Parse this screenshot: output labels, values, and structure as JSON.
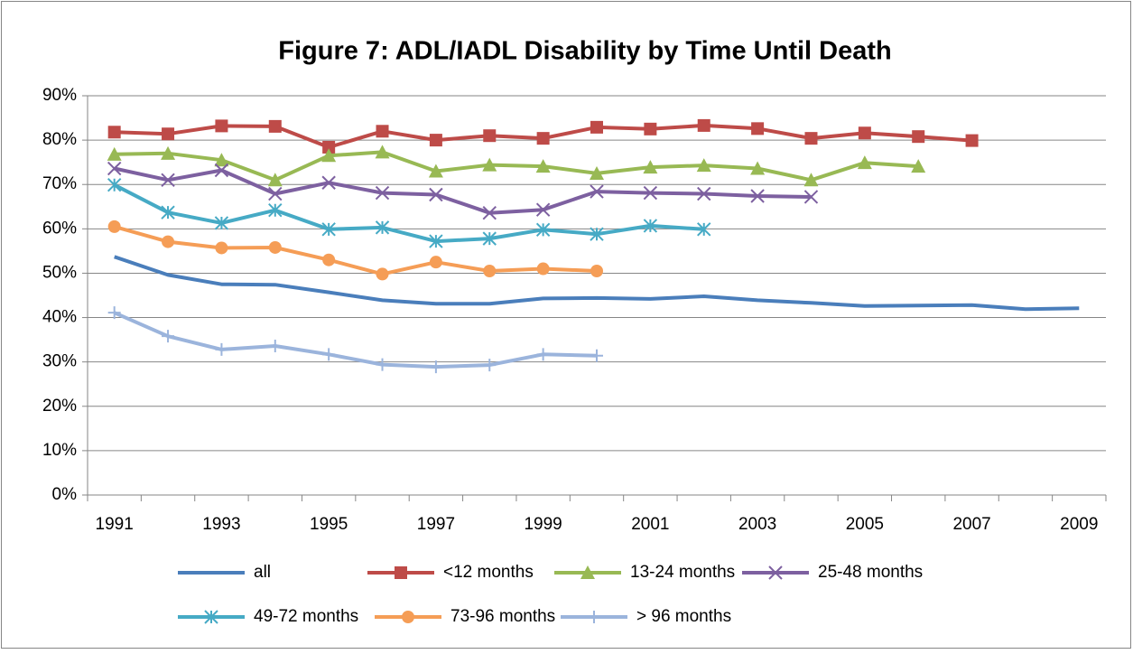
{
  "chart_data": {
    "type": "line",
    "title": "Figure 7: ADL/IADL Disability by Time Until Death",
    "categories": [
      "1991",
      null,
      "1993",
      null,
      "1995",
      null,
      "1997",
      null,
      "1999",
      null,
      "2001",
      null,
      "2003",
      null,
      "2005",
      null,
      "2007",
      null,
      "2009"
    ],
    "ylim": [
      0,
      90
    ],
    "yticks": [
      {
        "value": 0,
        "label": "0%"
      },
      {
        "value": 10,
        "label": "10%"
      },
      {
        "value": 20,
        "label": "20%"
      },
      {
        "value": 30,
        "label": "30%"
      },
      {
        "value": 40,
        "label": "40%"
      },
      {
        "value": 50,
        "label": "50%"
      },
      {
        "value": 60,
        "label": "60%"
      },
      {
        "value": 70,
        "label": "70%"
      },
      {
        "value": 80,
        "label": "80%"
      },
      {
        "value": 90,
        "label": "90%"
      }
    ],
    "grid": true,
    "legend": "bottom",
    "series": [
      {
        "name": "all",
        "color": "#4a7ebb",
        "marker": "none",
        "values": [
          53.7,
          49.6,
          47.5,
          47.4,
          45.7,
          43.9,
          43.1,
          43.1,
          44.3,
          44.4,
          44.2,
          44.8,
          43.9,
          43.3,
          42.6,
          42.7,
          42.8,
          41.9,
          42.1
        ]
      },
      {
        "name": "<12 months",
        "color": "#be4b48",
        "marker": "square",
        "values": [
          81.8,
          81.4,
          83.2,
          83.1,
          78.4,
          82.0,
          80.0,
          81.0,
          80.4,
          82.9,
          82.5,
          83.3,
          82.6,
          80.4,
          81.6,
          80.8,
          79.9,
          null,
          null
        ]
      },
      {
        "name": "13-24 months",
        "color": "#98b954",
        "marker": "triangle",
        "values": [
          76.8,
          77.0,
          75.5,
          71.0,
          76.5,
          77.3,
          73.0,
          74.4,
          74.1,
          72.5,
          73.9,
          74.3,
          73.6,
          71.0,
          74.9,
          74.1,
          null,
          null,
          null
        ]
      },
      {
        "name": "25-48 months",
        "color": "#7d60a0",
        "marker": "x",
        "values": [
          73.6,
          71.0,
          73.2,
          67.9,
          70.4,
          68.1,
          67.7,
          63.6,
          64.3,
          68.4,
          68.1,
          67.9,
          67.4,
          67.2,
          null,
          null,
          null,
          null,
          null
        ]
      },
      {
        "name": "49-72 months",
        "color": "#46aac5",
        "marker": "star",
        "values": [
          69.9,
          63.7,
          61.3,
          64.2,
          59.9,
          60.3,
          57.2,
          57.8,
          59.8,
          58.8,
          60.7,
          59.9,
          null,
          null,
          null,
          null,
          null,
          null,
          null
        ]
      },
      {
        "name": "73-96 months",
        "color": "#f59d56",
        "marker": "circle",
        "values": [
          60.5,
          57.1,
          55.7,
          55.8,
          53.0,
          49.8,
          52.5,
          50.5,
          51.0,
          50.5,
          null,
          null,
          null,
          null,
          null,
          null,
          null,
          null,
          null
        ]
      },
      {
        "name": "> 96 months",
        "color": "#9bb4dc",
        "marker": "plus",
        "values": [
          41.1,
          35.8,
          32.8,
          33.6,
          31.7,
          29.4,
          28.9,
          29.3,
          31.7,
          31.4,
          null,
          null,
          null,
          null,
          null,
          null,
          null,
          null,
          null
        ]
      }
    ]
  }
}
